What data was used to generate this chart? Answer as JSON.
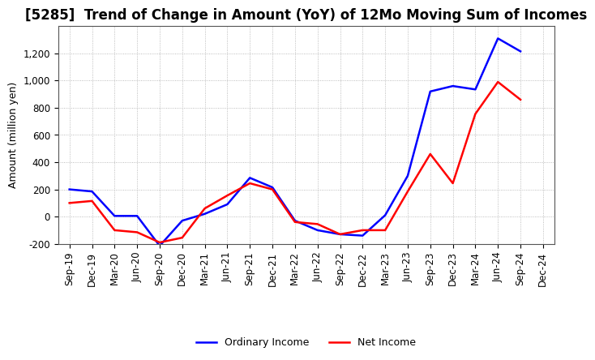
{
  "title": "[5285]  Trend of Change in Amount (YoY) of 12Mo Moving Sum of Incomes",
  "ylabel": "Amount (million yen)",
  "ylim": [
    -200,
    1400
  ],
  "yticks": [
    -200,
    0,
    200,
    400,
    600,
    800,
    1000,
    1200
  ],
  "background_color": "#ffffff",
  "grid_color": "#aaaaaa",
  "x_labels": [
    "Sep-19",
    "Dec-19",
    "Mar-20",
    "Jun-20",
    "Sep-20",
    "Dec-20",
    "Mar-21",
    "Jun-21",
    "Sep-21",
    "Dec-21",
    "Mar-22",
    "Jun-22",
    "Sep-22",
    "Dec-22",
    "Mar-23",
    "Jun-23",
    "Sep-23",
    "Dec-23",
    "Mar-24",
    "Jun-24",
    "Sep-24",
    "Dec-24"
  ],
  "ordinary_income": [
    200,
    185,
    5,
    5,
    -215,
    -30,
    20,
    90,
    285,
    215,
    -30,
    -100,
    -130,
    -140,
    10,
    300,
    920,
    960,
    935,
    1310,
    1215,
    null
  ],
  "net_income": [
    100,
    115,
    -100,
    -115,
    -190,
    -155,
    60,
    155,
    245,
    200,
    -40,
    -55,
    -130,
    -100,
    -100,
    185,
    460,
    245,
    755,
    990,
    860,
    null
  ],
  "ordinary_color": "#0000ff",
  "net_color": "#ff0000",
  "line_width": 1.8,
  "legend_loc": "lower center",
  "legend_ncol": 2,
  "title_fontsize": 12,
  "tick_fontsize": 8.5,
  "ylabel_fontsize": 9
}
